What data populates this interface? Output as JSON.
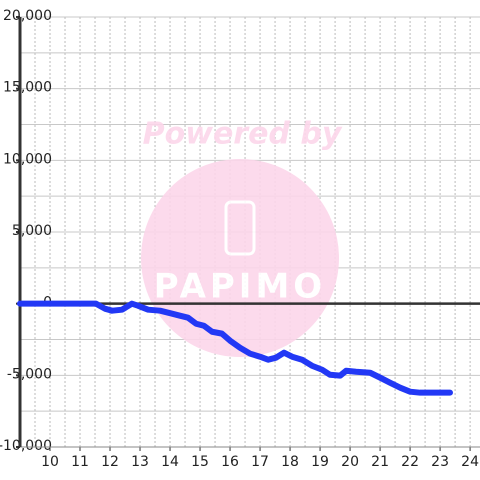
{
  "chart_data": {
    "type": "line",
    "watermark": {
      "text": "Powered by",
      "logo": "PAPIMO"
    },
    "x": [
      9.0,
      10.33,
      11.53,
      11.83,
      12.07,
      12.4,
      12.73,
      12.93,
      13.27,
      13.67,
      14.07,
      14.33,
      14.6,
      14.87,
      15.13,
      15.4,
      15.73,
      16.0,
      16.33,
      16.67,
      17.0,
      17.27,
      17.53,
      17.8,
      18.07,
      18.4,
      18.73,
      19.07,
      19.33,
      19.67,
      19.87,
      20.2,
      20.67,
      21.0,
      21.33,
      21.67,
      22.0,
      22.33,
      23.33
    ],
    "series": [
      {
        "color": "#2238f5",
        "values": [
          0,
          0,
          0,
          -350,
          -490,
          -420,
          0,
          -140,
          -420,
          -490,
          -700,
          -840,
          -980,
          -1400,
          -1540,
          -1960,
          -2090,
          -2580,
          -3070,
          -3490,
          -3700,
          -3910,
          -3770,
          -3420,
          -3700,
          -3910,
          -4330,
          -4610,
          -4960,
          -5020,
          -4680,
          -4750,
          -4820,
          -5160,
          -5510,
          -5860,
          -6140,
          -6210,
          -6210
        ]
      }
    ],
    "xlim": [
      9,
      24.33
    ],
    "xticks": [
      10,
      11,
      12,
      13,
      14,
      15,
      16,
      17,
      18,
      19,
      20,
      21,
      22,
      23,
      24
    ],
    "ylim": [
      -10000,
      20000
    ],
    "yticks": [
      {
        "value": 20000,
        "label": "20,000"
      },
      {
        "value": 15000,
        "label": "15,000"
      },
      {
        "value": 10000,
        "label": "10,000"
      },
      {
        "value": 5000,
        "label": "5,000"
      },
      0,
      {
        "value": -5000,
        "label": "-5,000"
      },
      {
        "value": -10000,
        "label": "-10,000"
      }
    ],
    "ygrid_step": 2500,
    "xgrid_step": 0.5,
    "grid": true
  }
}
